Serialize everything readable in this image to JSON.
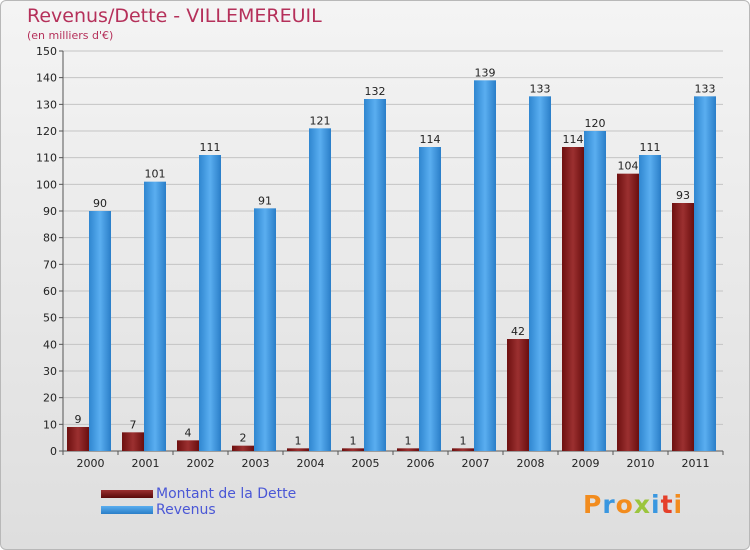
{
  "chart_data": {
    "type": "bar",
    "title": "Revenus/Dette - VILLEMEREUIL",
    "subtitle": "(en milliers d'€)",
    "categories": [
      "2000",
      "2001",
      "2002",
      "2003",
      "2004",
      "2005",
      "2006",
      "2007",
      "2008",
      "2009",
      "2010",
      "2011"
    ],
    "series": [
      {
        "name": "Montant de la Dette",
        "color": "#8b1a1a",
        "values": [
          9,
          7,
          4,
          2,
          1,
          1,
          1,
          1,
          42,
          114,
          104,
          93
        ]
      },
      {
        "name": "Revenus",
        "color": "#3a97e0",
        "values": [
          90,
          101,
          111,
          91,
          121,
          132,
          114,
          139,
          133,
          120,
          111,
          133
        ]
      }
    ],
    "ylim": [
      0,
      150
    ],
    "yticks": [
      0,
      10,
      20,
      30,
      40,
      50,
      60,
      70,
      80,
      90,
      100,
      110,
      120,
      130,
      140,
      150
    ],
    "grid": true,
    "legend_position": "bottom-left"
  },
  "branding": {
    "logo_text": "Proxiti",
    "logo_colors": [
      "#f28c1e",
      "#3a97e0",
      "#f28c1e",
      "#9bc53d",
      "#3a97e0",
      "#e5402a",
      "#f28c1e"
    ]
  }
}
